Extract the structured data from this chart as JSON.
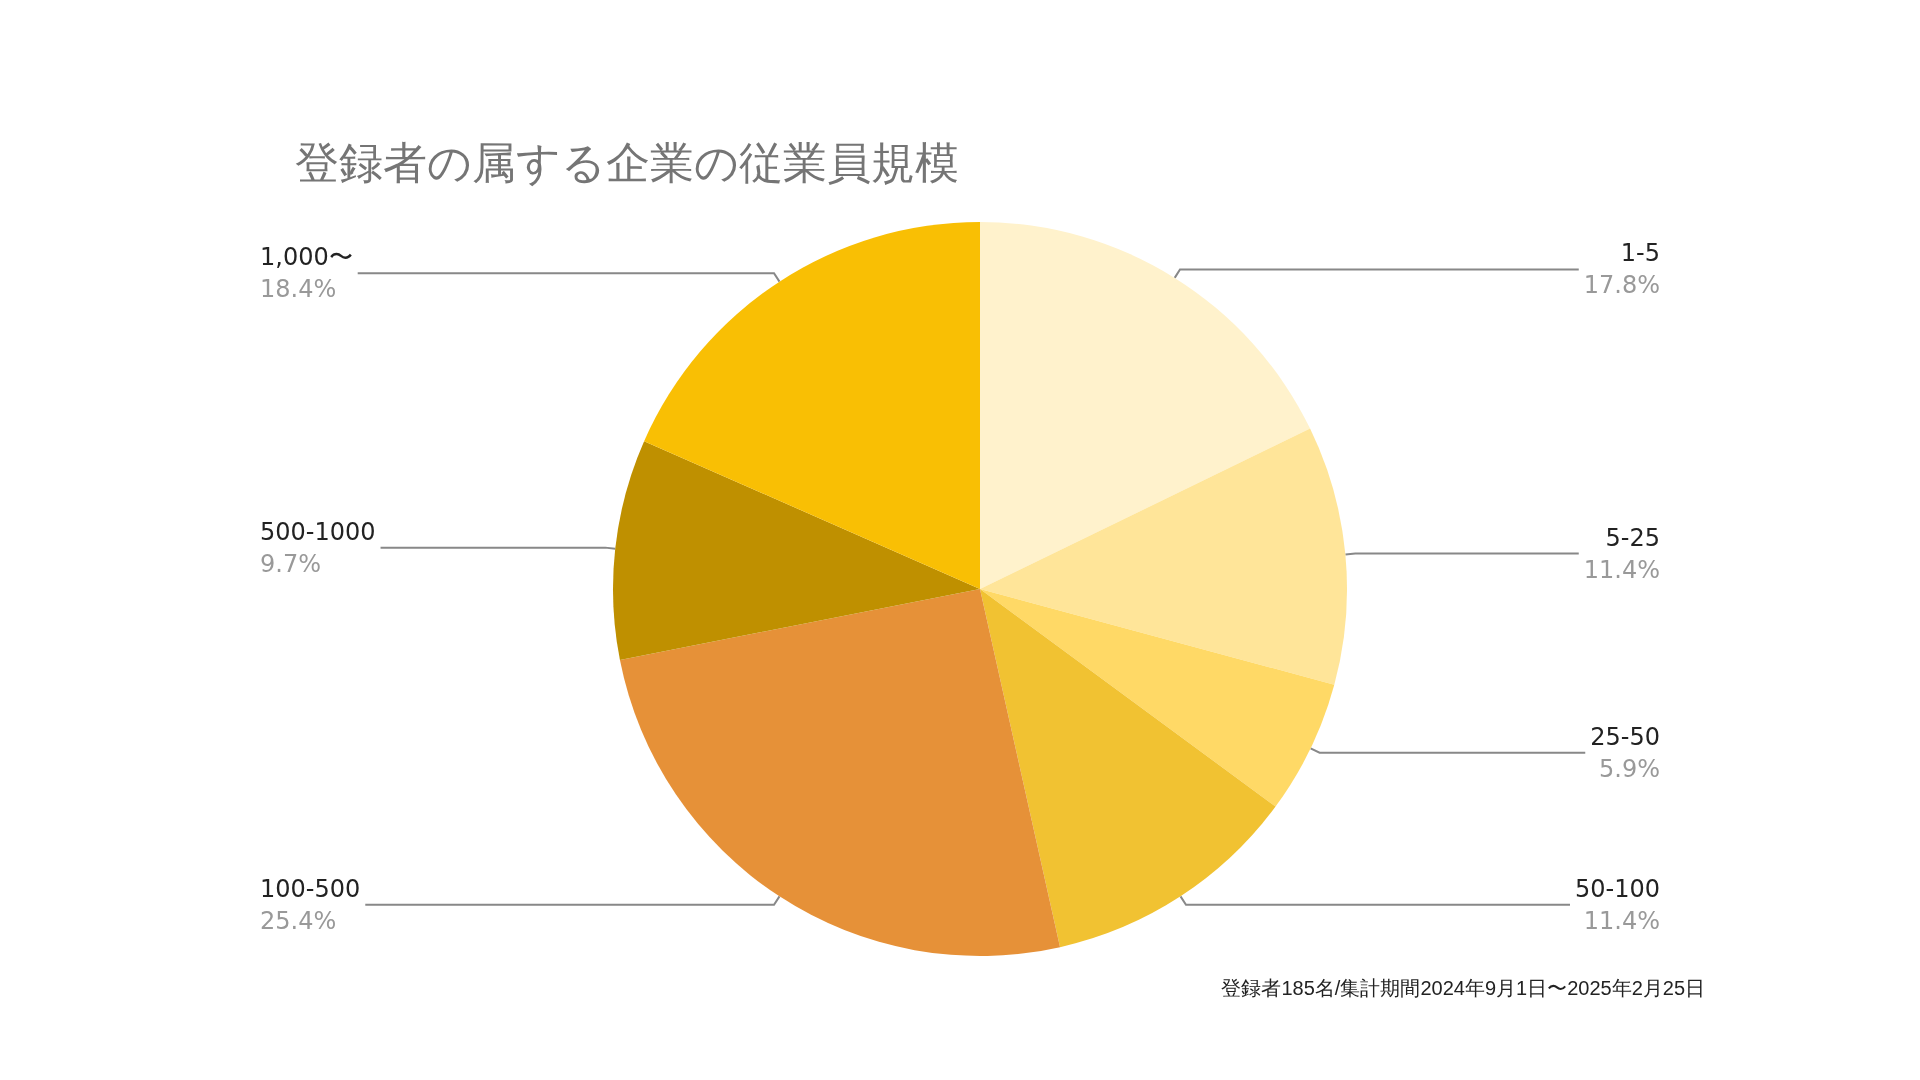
{
  "chart_data": {
    "type": "pie",
    "title": "登録者の属する企業の従業員規模",
    "categories": [
      "1-5",
      "5-25",
      "25-50",
      "50-100",
      "100-500",
      "500-1000",
      "1,000〜"
    ],
    "values": [
      17.8,
      11.4,
      5.9,
      11.4,
      25.4,
      9.7,
      18.4
    ],
    "value_labels": [
      "17.8%",
      "11.4%",
      "5.9%",
      "11.4%",
      "25.4%",
      "9.7%",
      "18.4%"
    ],
    "colors": [
      "#fff2cc",
      "#ffe599",
      "#ffd966",
      "#f1c232",
      "#e69138",
      "#bf9000",
      "#f9bf04"
    ],
    "legend": false,
    "annotations": [
      "登録者185名/集計期間2024年9月1日〜2025年2月25日"
    ]
  }
}
